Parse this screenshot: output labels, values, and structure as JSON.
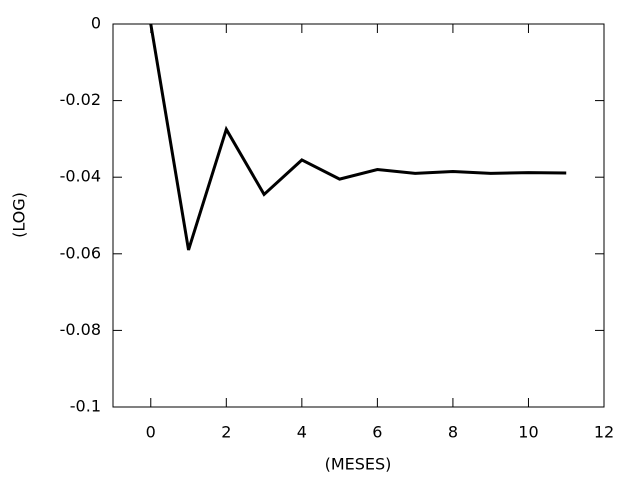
{
  "chart_data": {
    "type": "line",
    "x_label": "(MESES)",
    "y_label": "(LOG)",
    "x": [
      0,
      1,
      2,
      3,
      4,
      5,
      6,
      7,
      8,
      9,
      10,
      11
    ],
    "series": [
      {
        "color": "#000000",
        "values": [
          0,
          -0.059,
          -0.0275,
          -0.0445,
          -0.0355,
          -0.0405,
          -0.038,
          -0.039,
          -0.0385,
          -0.039,
          -0.0388,
          -0.0389
        ]
      }
    ],
    "xlim": [
      -1,
      12
    ],
    "xticks": [
      0,
      2,
      4,
      6,
      8,
      10,
      12
    ],
    "ylim": [
      -0.1,
      0
    ],
    "yticks": [
      0,
      -0.02,
      -0.04,
      -0.06,
      -0.08,
      -0.1
    ]
  }
}
